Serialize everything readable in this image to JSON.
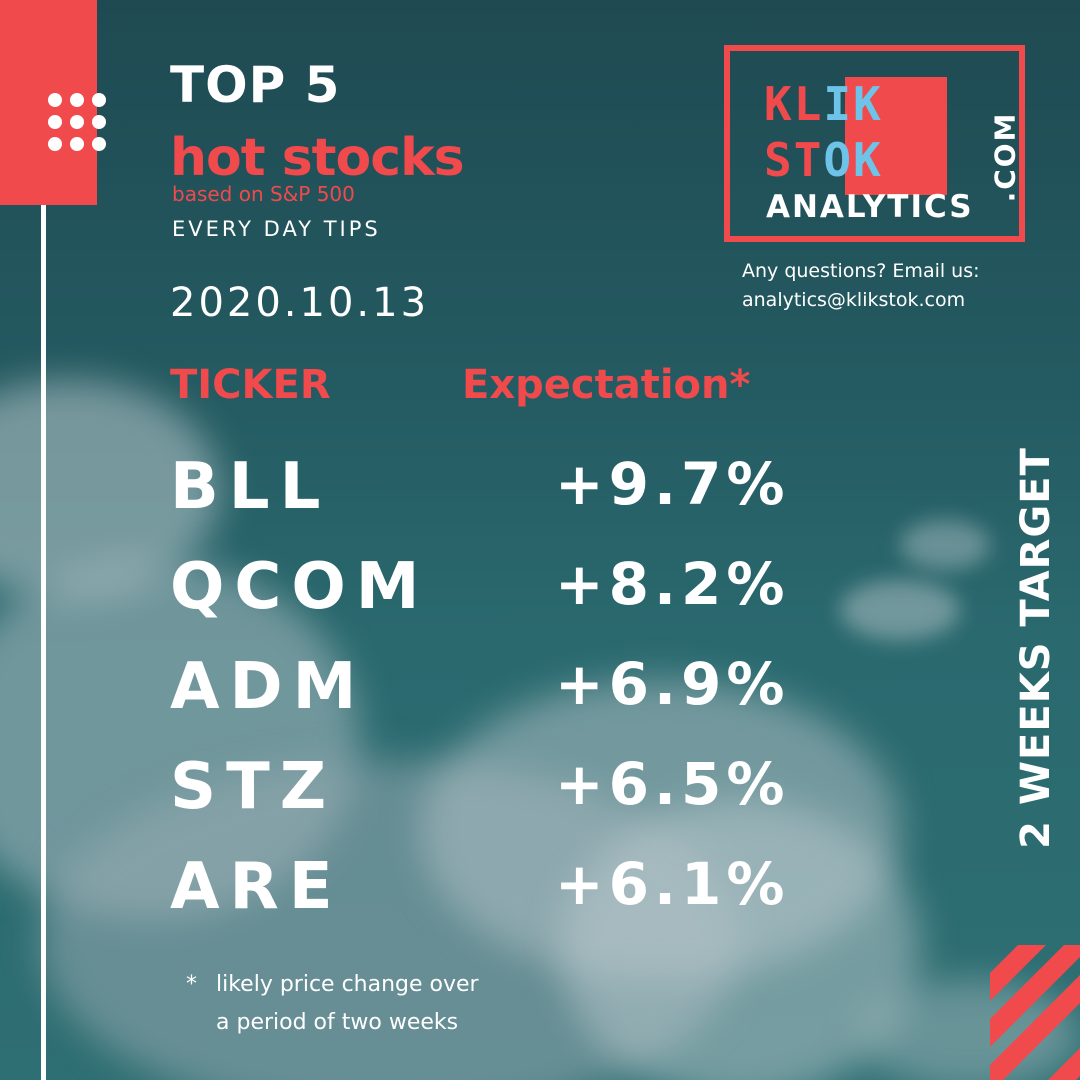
{
  "header": {
    "top": "TOP 5",
    "hot": "hot stocks",
    "based": "based on S&P 500",
    "tips": "EVERY DAY TIPS",
    "date": "2020.10.13"
  },
  "logo": {
    "line1_red": "KL",
    "line1_blue": "IK",
    "line2_red": "ST",
    "line2_blue": "OK",
    "analytics": "ANALYTICS",
    "com": ".COM"
  },
  "contact": {
    "question": "Any questions? Email us:",
    "email": "analytics@klikstok.com"
  },
  "table": {
    "header_ticker": "TICKER",
    "header_expectation": "Expectation*",
    "rows": [
      {
        "ticker": "BLL",
        "expectation": "+9.7%"
      },
      {
        "ticker": "QCOM",
        "expectation": "+8.2%"
      },
      {
        "ticker": "ADM",
        "expectation": "+6.9%"
      },
      {
        "ticker": "STZ",
        "expectation": "+6.5%"
      },
      {
        "ticker": "ARE",
        "expectation": "+6.1%"
      }
    ]
  },
  "footnote": {
    "star": "*",
    "line1": "likely price change over",
    "line2": "a period of two weeks"
  },
  "side": {
    "target": "2 WEEKS TARGET"
  },
  "colors": {
    "accent": "#f04a4c",
    "logo_blue": "#6ec3e8",
    "background": "#245a61"
  },
  "icons": {
    "dot_grid": "dot-grid-icon"
  }
}
